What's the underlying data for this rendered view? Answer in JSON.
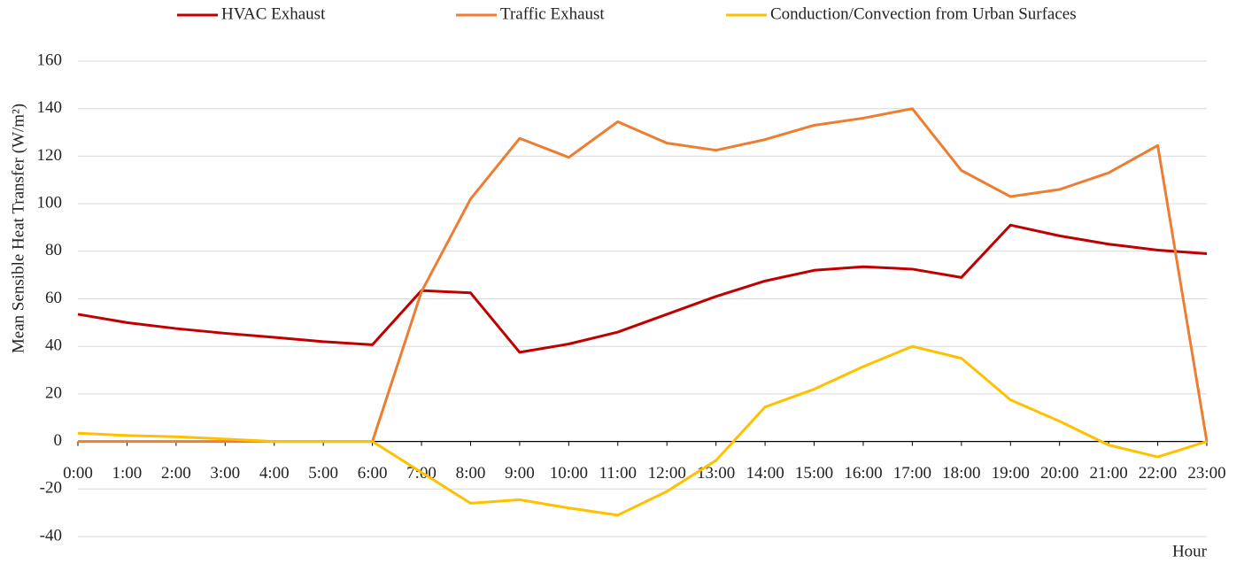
{
  "chart_data": {
    "type": "line",
    "y_label": "Mean Sensible Heat Transfer (W/m²)",
    "x_label": "Hour",
    "categories": [
      "0:00",
      "1:00",
      "2:00",
      "3:00",
      "4:00",
      "5:00",
      "6:00",
      "7:00",
      "8:00",
      "9:00",
      "10:00",
      "11:00",
      "12:00",
      "13:00",
      "14:00",
      "15:00",
      "16:00",
      "17:00",
      "18:00",
      "19:00",
      "20:00",
      "21:00",
      "22:00",
      "23:00"
    ],
    "series": [
      {
        "name": "HVAC Exhaust",
        "color": "#c00000",
        "values": [
          53.5,
          50,
          47.5,
          45.5,
          43.8,
          42,
          40.7,
          63.5,
          62.5,
          37.5,
          41,
          46,
          53.5,
          61,
          67.5,
          72,
          73.5,
          72.5,
          69,
          91,
          86.5,
          83,
          80.5,
          79
        ]
      },
      {
        "name": "Traffic Exhaust",
        "color": "#ed7d31",
        "values": [
          0,
          0,
          0,
          0,
          0,
          0,
          0,
          63,
          102,
          127.5,
          119.5,
          134.5,
          125.5,
          122.5,
          127,
          133,
          136,
          140,
          114,
          103,
          106,
          113,
          124.5,
          0
        ]
      },
      {
        "name": "Conduction/Convection from Urban Surfaces",
        "color": "#ffc000",
        "values": [
          3.5,
          2.5,
          2,
          1,
          0,
          0,
          0,
          -13,
          -26,
          -24.5,
          -28,
          -31,
          -21,
          -8,
          14.5,
          22,
          31.5,
          40,
          35,
          17.5,
          8.5,
          -1.5,
          -6.5,
          0
        ]
      }
    ],
    "ylim": [
      -40,
      160
    ],
    "yticks": [
      -40,
      -20,
      0,
      20,
      40,
      60,
      80,
      100,
      120,
      140,
      160
    ],
    "grid": true,
    "legend": "top"
  }
}
